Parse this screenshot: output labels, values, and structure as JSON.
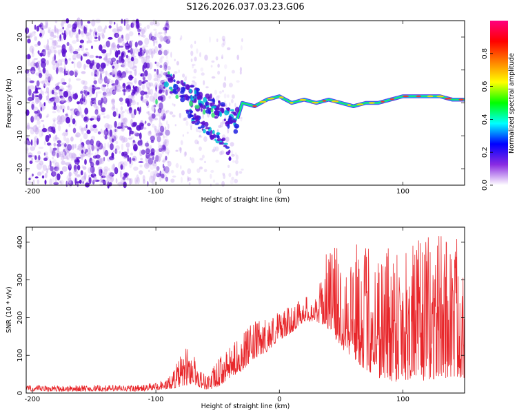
{
  "figure_title": "S126.2026.037.03.23.G06",
  "colors": {
    "snr_line": "#e8262a",
    "purple_dark": "#5a0fcf",
    "purple_light": "#c8a8f0",
    "axis": "#000000"
  },
  "chart_data": [
    {
      "type": "heatmap",
      "title": "S126.2026.037.03.23.G06",
      "xlabel": "Height of straight line (km)",
      "ylabel": "Frequency (Hz)",
      "xlim": [
        -205,
        150
      ],
      "ylim": [
        -25,
        25
      ],
      "xticks": [
        -200,
        -100,
        0,
        100
      ],
      "yticks": [
        -20,
        -10,
        0,
        10,
        20
      ],
      "colorbar": {
        "label": "Normalized spectral amplitude",
        "range": [
          0,
          1
        ],
        "ticks": [
          "0.0",
          "0.2",
          "0.4",
          "0.6",
          "0.8"
        ],
        "colormap": [
          "#ffffff",
          "#8a2be2",
          "#0000ff",
          "#00ffff",
          "#00ff00",
          "#ffff00",
          "#ff8000",
          "#ff0000",
          "#ff007f"
        ]
      },
      "ridge": {
        "x": [
          -95,
          -80,
          -60,
          -45,
          -35,
          -30,
          -20,
          -10,
          0,
          10,
          20,
          30,
          40,
          50,
          60,
          70,
          80,
          90,
          100,
          110,
          120,
          130,
          140,
          150
        ],
        "y": [
          8,
          4,
          0,
          -3,
          -6,
          0,
          -1,
          1,
          2,
          0,
          1,
          0,
          1,
          0,
          -1,
          0,
          0,
          1,
          2,
          2,
          2,
          2,
          1,
          1
        ]
      },
      "secondary_branch": {
        "x": [
          -75,
          -65,
          -55,
          -45,
          -40
        ],
        "y": [
          -3,
          -6,
          -9,
          -12,
          -16
        ]
      },
      "noise_region": {
        "x": [
          -205,
          -90
        ],
        "y": [
          -25,
          25
        ]
      }
    },
    {
      "type": "line",
      "xlabel": "Height of straight line (km)",
      "ylabel": "SNR (10 * v/v)",
      "xlim": [
        -205,
        150
      ],
      "ylim": [
        0,
        440
      ],
      "xticks": [
        -200,
        -100,
        0,
        100
      ],
      "yticks": [
        0,
        100,
        200,
        300,
        400
      ],
      "series": [
        {
          "name": "SNR",
          "envelope_x": [
            -205,
            -110,
            -100,
            -90,
            -80,
            -75,
            -70,
            -65,
            -60,
            -55,
            -50,
            -40,
            -30,
            -20,
            -10,
            0,
            10,
            20,
            30,
            40,
            50,
            60,
            70,
            80,
            90,
            100,
            110,
            120,
            130,
            140,
            150
          ],
          "envelope_low": [
            5,
            5,
            8,
            10,
            15,
            20,
            25,
            15,
            10,
            10,
            15,
            40,
            60,
            90,
            110,
            140,
            160,
            190,
            190,
            170,
            120,
            90,
            60,
            40,
            30,
            30,
            40,
            30,
            40,
            40,
            40
          ],
          "envelope_high": [
            20,
            22,
            30,
            40,
            100,
            125,
            110,
            70,
            50,
            60,
            90,
            120,
            160,
            190,
            200,
            220,
            230,
            260,
            250,
            400,
            380,
            400,
            400,
            400,
            420,
            430,
            400,
            420,
            430,
            440,
            420
          ]
        }
      ]
    }
  ]
}
